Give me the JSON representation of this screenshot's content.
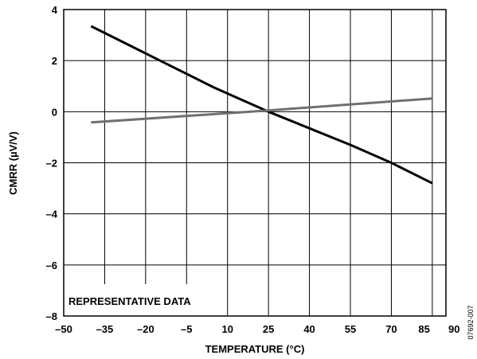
{
  "chart_data": {
    "type": "line",
    "xlabel": "TEMPERATURE (°C)",
    "ylabel": "CMRR (µV/V)",
    "xlim": [
      -50,
      90
    ],
    "ylim": [
      -8,
      4
    ],
    "x_ticks": [
      -50,
      -35,
      -20,
      -5,
      10,
      25,
      40,
      55,
      70,
      85,
      90
    ],
    "x_tick_labels": [
      "–50",
      "–35",
      "–20",
      "–5",
      "10",
      "25",
      "40",
      "55",
      "70",
      "85",
      "90"
    ],
    "y_ticks": [
      -8,
      -6,
      -4,
      -2,
      0,
      2,
      4
    ],
    "y_tick_labels": [
      "–8",
      "–6",
      "–4",
      "–2",
      "0",
      "2",
      "4"
    ],
    "grid": true,
    "series": [
      {
        "color": "#000000",
        "x": [
          -40,
          -25,
          -10,
          5,
          25,
          40,
          55,
          70,
          85
        ],
        "y": [
          3.35,
          2.55,
          1.75,
          0.95,
          0.0,
          -0.65,
          -1.3,
          -2.0,
          -2.8
        ]
      },
      {
        "color": "#707070",
        "x": [
          -40,
          25,
          85
        ],
        "y": [
          -0.42,
          0.05,
          0.52
        ]
      }
    ],
    "annotations": [
      "REPRESENTATIVE DATA"
    ],
    "figure_id": "07692-007"
  }
}
